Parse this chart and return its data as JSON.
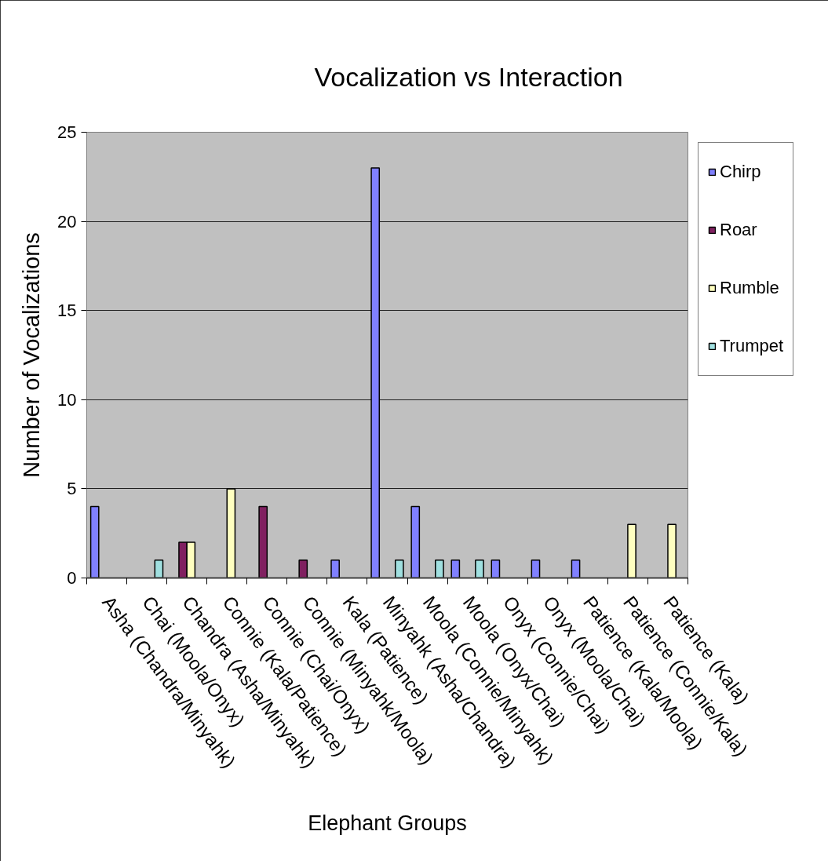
{
  "chart_data": {
    "type": "bar",
    "title": "Vocalization vs Interaction",
    "xlabel": "Elephant Groups",
    "ylabel": "Number of Vocalizations",
    "categories": [
      "Asha (Chandra/Minyahk)",
      "Chai (Moola/Onyx)",
      "Chandra (Asha/Minyahk)",
      "Connie (Kala/Patience)",
      "Connie (Chai/Onyx)",
      "Connie (Minyahk/Moola)",
      "Kala (Patience)",
      "Minyahk (Asha/Chandra)",
      "Moola (Connie/Minyahk)",
      "Moola (Onyx/Chai)",
      "Onyx (Connie/Chai)",
      "Onyx (Moola/Chai)",
      "Patience (Kala/Moola)",
      "Patience (Connie/Kala)",
      "Patience (Kala)"
    ],
    "series": [
      {
        "name": "Chirp",
        "color": "#8080ff",
        "values": [
          4,
          null,
          null,
          null,
          null,
          null,
          1,
          23,
          4,
          1,
          1,
          1,
          1,
          null,
          null
        ]
      },
      {
        "name": "Roar",
        "color": "#802060",
        "values": [
          null,
          null,
          2,
          null,
          4,
          1,
          null,
          null,
          null,
          null,
          null,
          null,
          null,
          null,
          null
        ]
      },
      {
        "name": "Rumble",
        "color": "#ffffc0",
        "values": [
          null,
          null,
          2,
          5,
          null,
          null,
          null,
          null,
          null,
          null,
          null,
          null,
          null,
          3,
          3
        ]
      },
      {
        "name": "Trumpet",
        "color": "#a0e0e0",
        "values": [
          null,
          1,
          null,
          null,
          null,
          null,
          null,
          1,
          1,
          1,
          null,
          null,
          null,
          null,
          null
        ]
      }
    ],
    "ylim": [
      0,
      25
    ],
    "yticks": [
      0,
      5,
      10,
      15,
      20,
      25
    ],
    "grid": "y",
    "legend": "top right"
  }
}
